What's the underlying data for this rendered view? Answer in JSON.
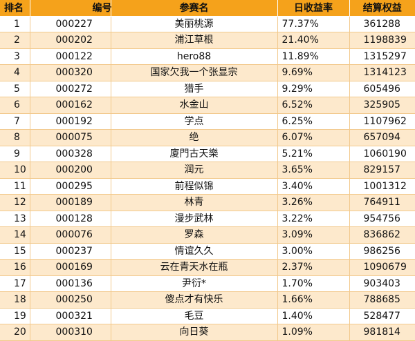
{
  "table": {
    "headers": {
      "rank": "排名",
      "id": "编号",
      "name": "参赛名",
      "rate": "日收益率",
      "equity": "结算权益"
    },
    "rows": [
      {
        "rank": "1",
        "id": "000227",
        "name": "美丽桃源",
        "rate": "77.37%",
        "equity": "361288"
      },
      {
        "rank": "2",
        "id": "000202",
        "name": "浦江草根",
        "rate": "21.40%",
        "equity": "1198839"
      },
      {
        "rank": "3",
        "id": "000122",
        "name": "hero88",
        "rate": "11.89%",
        "equity": "1315297"
      },
      {
        "rank": "4",
        "id": "000320",
        "name": "国家欠我一个张显宗",
        "rate": "9.69%",
        "equity": "1314123"
      },
      {
        "rank": "5",
        "id": "000272",
        "name": "猎手",
        "rate": "9.29%",
        "equity": "605496"
      },
      {
        "rank": "6",
        "id": "000162",
        "name": "水金山",
        "rate": "6.52%",
        "equity": "325905"
      },
      {
        "rank": "7",
        "id": "000192",
        "name": "学点",
        "rate": "6.25%",
        "equity": "1107962"
      },
      {
        "rank": "8",
        "id": "000075",
        "name": "绝",
        "rate": "6.07%",
        "equity": "657094"
      },
      {
        "rank": "9",
        "id": "000328",
        "name": "廈門古天樂",
        "rate": "5.21%",
        "equity": "1060190"
      },
      {
        "rank": "10",
        "id": "000200",
        "name": "润元",
        "rate": "3.65%",
        "equity": "829157"
      },
      {
        "rank": "11",
        "id": "000295",
        "name": "前程似锦",
        "rate": "3.40%",
        "equity": "1001312"
      },
      {
        "rank": "12",
        "id": "000189",
        "name": "林青",
        "rate": "3.26%",
        "equity": "764911"
      },
      {
        "rank": "13",
        "id": "000128",
        "name": "漫步武林",
        "rate": "3.22%",
        "equity": "954756"
      },
      {
        "rank": "14",
        "id": "000076",
        "name": "罗森",
        "rate": "3.09%",
        "equity": "836862"
      },
      {
        "rank": "15",
        "id": "000237",
        "name": "情谊久久",
        "rate": "3.00%",
        "equity": "986256"
      },
      {
        "rank": "16",
        "id": "000169",
        "name": "云在青天水在瓶",
        "rate": "2.37%",
        "equity": "1090679"
      },
      {
        "rank": "17",
        "id": "000136",
        "name": "尹衍*",
        "rate": "1.70%",
        "equity": "903403"
      },
      {
        "rank": "18",
        "id": "000250",
        "name": "傻点才有快乐",
        "rate": "1.66%",
        "equity": "788685"
      },
      {
        "rank": "19",
        "id": "000321",
        "name": "毛豆",
        "rate": "1.40%",
        "equity": "528477"
      },
      {
        "rank": "20",
        "id": "000310",
        "name": "向日葵",
        "rate": "1.09%",
        "equity": "981814"
      }
    ]
  },
  "colors": {
    "header_bg": "#f5a21b",
    "stripe_bg": "#fde9cc",
    "row_bg": "#ffffff",
    "grid_line": "#f2c98c"
  }
}
